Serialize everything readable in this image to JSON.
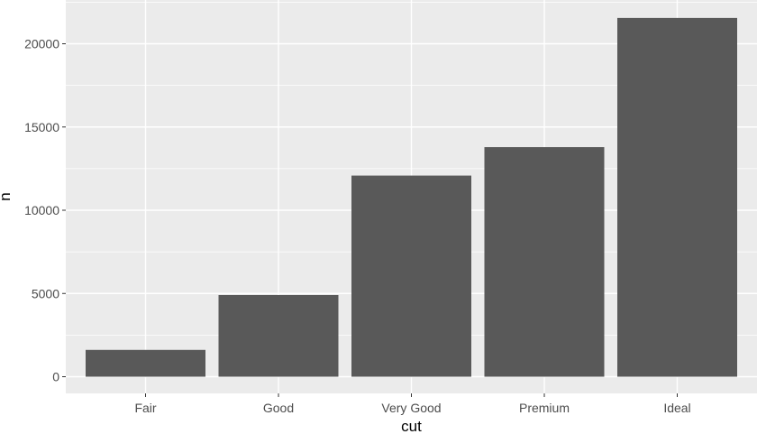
{
  "chart_data": {
    "type": "bar",
    "title": "",
    "xlabel": "cut",
    "ylabel": "n",
    "categories": [
      "Fair",
      "Good",
      "Very Good",
      "Premium",
      "Ideal"
    ],
    "values": [
      1610,
      4906,
      12082,
      13791,
      21551
    ],
    "ylim": [
      0,
      22600
    ],
    "yticks": [
      0,
      5000,
      10000,
      15000,
      20000
    ],
    "grid": true,
    "legend": "none",
    "colors": {
      "panel": "#ebebeb",
      "grid": "#ffffff",
      "bar": "#595959",
      "tick_text": "#4d4d4d",
      "tick_mark": "#333333"
    }
  }
}
